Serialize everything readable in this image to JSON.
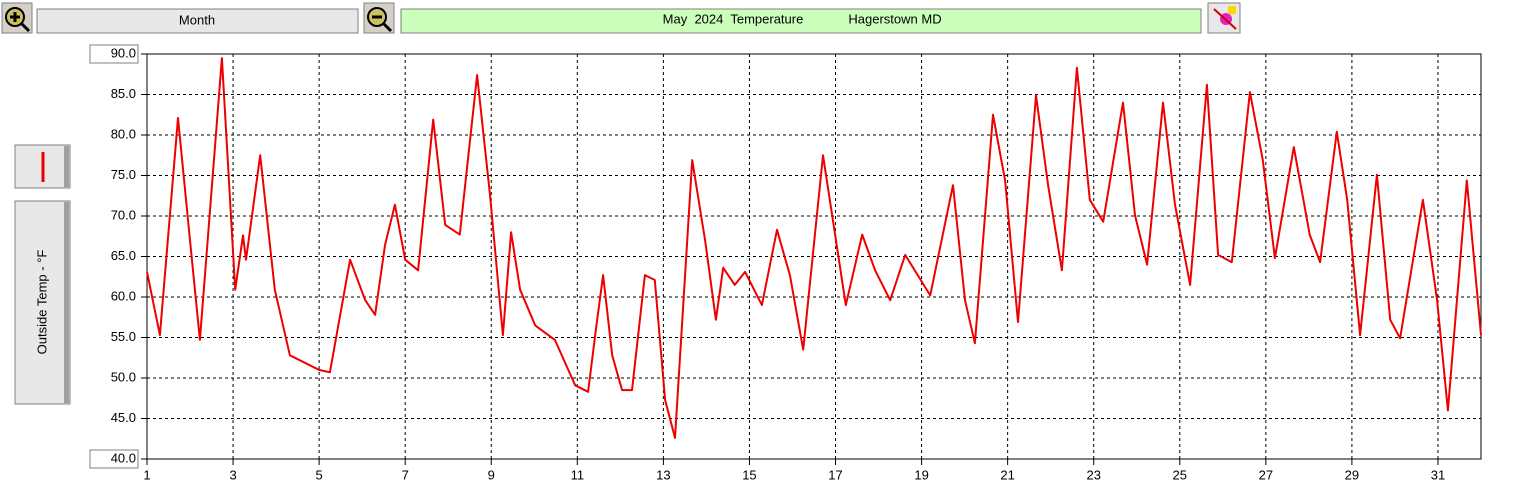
{
  "toolbar": {
    "period": "Month"
  },
  "chart_data": {
    "type": "line",
    "title": "May  2024  Temperature",
    "subtitle": "Hagerstown MD",
    "y_label": "Outside Temp - °F",
    "color": "#ee0000",
    "grid": true,
    "xlim": [
      1,
      32
    ],
    "xticks": [
      1,
      3,
      5,
      7,
      9,
      11,
      13,
      15,
      17,
      19,
      21,
      23,
      25,
      27,
      29,
      31
    ],
    "ylim": [
      40,
      90
    ],
    "yticks": [
      {
        "value": 40,
        "label": "40.0"
      },
      {
        "value": 45,
        "label": "45.0"
      },
      {
        "value": 50,
        "label": "50.0"
      },
      {
        "value": 55,
        "label": "55.0"
      },
      {
        "value": 60,
        "label": "60.0"
      },
      {
        "value": 65,
        "label": "65.0"
      },
      {
        "value": 70,
        "label": "70.0"
      },
      {
        "value": 75,
        "label": "75.0"
      },
      {
        "value": 80,
        "label": "80.0"
      },
      {
        "value": 85,
        "label": "85.0"
      },
      {
        "value": 90,
        "label": "90.0"
      }
    ],
    "x": [
      1,
      1.3,
      1.72,
      2.0,
      2.23,
      2.74,
      3.05,
      3.23,
      3.3,
      3.63,
      3.97,
      4.32,
      5.0,
      5.25,
      5.72,
      6.07,
      6.3,
      6.53,
      6.76,
      7.0,
      7.3,
      7.65,
      7.93,
      8.27,
      8.67,
      8.97,
      9.27,
      9.46,
      9.67,
      10.02,
      10.48,
      10.95,
      11.25,
      11.43,
      11.6,
      11.81,
      12.04,
      12.27,
      12.57,
      12.8,
      13.04,
      13.27,
      13.67,
      13.97,
      14.22,
      14.39,
      14.66,
      14.9,
      15.29,
      15.64,
      15.94,
      16.25,
      16.71,
      16.99,
      17.24,
      17.62,
      17.92,
      18.27,
      18.62,
      19.2,
      19.73,
      20.01,
      20.24,
      20.66,
      20.94,
      21.24,
      21.66,
      21.94,
      22.26,
      22.61,
      22.91,
      23.22,
      23.68,
      23.96,
      24.24,
      24.61,
      24.89,
      25.24,
      25.63,
      25.89,
      26.21,
      26.63,
      26.93,
      27.21,
      27.65,
      28.02,
      28.26,
      28.65,
      28.89,
      29.19,
      29.58,
      29.89,
      30.12,
      30.65,
      30.98,
      31.23,
      31.67,
      32.0
    ],
    "values": [
      63.1,
      55.3,
      82.1,
      67.0,
      54.7,
      89.5,
      60.9,
      67.6,
      64.6,
      77.5,
      60.9,
      52.8,
      51.0,
      50.7,
      64.6,
      59.6,
      57.8,
      66.4,
      71.4,
      64.6,
      63.3,
      81.9,
      68.9,
      67.7,
      87.4,
      72.6,
      55.3,
      68.0,
      60.9,
      56.5,
      54.7,
      49.1,
      48.3,
      55.9,
      62.7,
      52.8,
      48.5,
      48.5,
      62.7,
      62.1,
      47.3,
      42.6,
      76.9,
      67.0,
      57.2,
      63.6,
      61.5,
      63.1,
      59.0,
      68.3,
      62.7,
      53.5,
      77.5,
      67.7,
      59.0,
      67.7,
      63.3,
      59.6,
      65.2,
      60.2,
      73.8,
      59.6,
      54.3,
      82.5,
      74.4,
      56.9,
      84.9,
      73.8,
      63.3,
      88.3,
      72.0,
      69.3,
      84.0,
      70.1,
      64.0,
      84.0,
      71.4,
      61.5,
      86.2,
      65.2,
      64.3,
      85.3,
      76.9,
      64.8,
      78.5,
      67.7,
      64.3,
      80.4,
      72.0,
      55.3,
      75.1,
      57.2,
      54.9,
      72.0,
      59.6,
      46.0,
      74.4,
      55.3
    ]
  }
}
